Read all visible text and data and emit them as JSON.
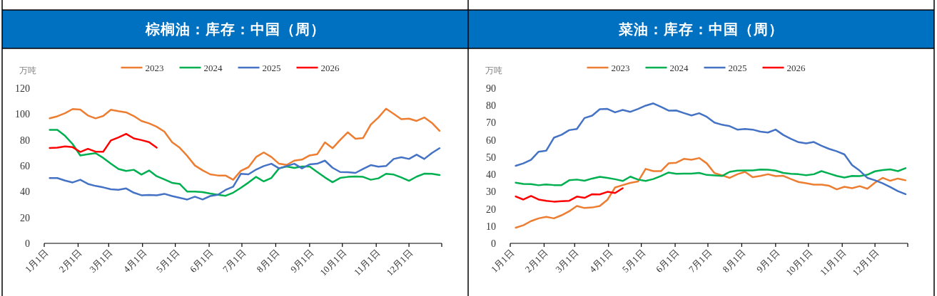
{
  "chart_data": [
    {
      "type": "line",
      "title": "棕榈油：库存：中国（周）",
      "ylabel": "万吨",
      "legend": "top",
      "x": [
        "--01-06",
        "--01-13",
        "--01-20",
        "--01-27",
        "--02-03",
        "--02-10",
        "--02-17",
        "--02-24",
        "--03-03",
        "--03-10",
        "--03-17",
        "--03-24",
        "--03-31",
        "--04-07",
        "--04-14",
        "--04-21",
        "--04-28",
        "--05-05",
        "--05-12",
        "--05-19",
        "--05-26",
        "--06-02",
        "--06-09",
        "--06-16",
        "--06-23",
        "--06-30",
        "--07-07",
        "--07-14",
        "--07-21",
        "--07-28",
        "--08-04",
        "--08-11",
        "--08-18",
        "--08-25",
        "--09-01",
        "--09-08",
        "--09-15",
        "--09-22",
        "--09-29",
        "--10-06",
        "--10-13",
        "--10-20",
        "--10-27",
        "--11-03",
        "--11-10",
        "--11-17",
        "--11-24",
        "--12-01",
        "--12-08",
        "--12-15",
        "--12-22",
        "--12-29"
      ],
      "xlim": [
        "--01-01",
        "--12-31"
      ],
      "xticks": [
        {
          "value": "--01-01",
          "label": "1月1日"
        },
        {
          "value": "--02-01",
          "label": "2月1日"
        },
        {
          "value": "--03-01",
          "label": "3月1日"
        },
        {
          "value": "--04-01",
          "label": "4月1日"
        },
        {
          "value": "--05-01",
          "label": "5月1日"
        },
        {
          "value": "--06-01",
          "label": "6月1日"
        },
        {
          "value": "--07-01",
          "label": "7月1日"
        },
        {
          "value": "--08-01",
          "label": "8月1日"
        },
        {
          "value": "--09-01",
          "label": "9月1日"
        },
        {
          "value": "--10-01",
          "label": "10月1日"
        },
        {
          "value": "--11-01",
          "label": "11月1日"
        },
        {
          "value": "--12-01",
          "label": "12月1日"
        },
        {
          "value": "--12-31",
          "label": null
        }
      ],
      "ylim": [
        0,
        120
      ],
      "yticks": [
        0,
        20,
        40,
        60,
        80,
        100,
        120
      ],
      "series": [
        {
          "name": "2023",
          "color": "#ed7d31",
          "values": [
            96.7,
            98.3,
            100.7,
            103.9,
            103.5,
            98.9,
            96.7,
            98.5,
            103.3,
            102.2,
            101.3,
            98.5,
            94.7,
            92.8,
            90.2,
            86.4,
            78.3,
            74,
            67.6,
            60.2,
            56.5,
            53.4,
            52.5,
            52.5,
            49.2,
            56.1,
            58.9,
            66.8,
            70.3,
            66.8,
            61.6,
            60.7,
            64,
            64.8,
            68,
            69,
            78.1,
            73.6,
            80,
            85.9,
            80.9,
            81.5,
            91.9,
            97.4,
            104.2,
            100.2,
            96.1,
            96.5,
            94.7,
            97.4,
            93.2,
            87
          ]
        },
        {
          "name": "2024",
          "color": "#00b050",
          "values": [
            87.8,
            87.8,
            83.2,
            76.8,
            68,
            68.9,
            69.8,
            66.1,
            61.7,
            57.5,
            56,
            56.9,
            53.2,
            56.4,
            51.9,
            49.5,
            46.8,
            46,
            40,
            40,
            39.6,
            38.5,
            37.6,
            36.8,
            39.2,
            42.9,
            47,
            51.4,
            47.9,
            50.6,
            58,
            59.4,
            58.3,
            59.4,
            59.4,
            55.2,
            51,
            47.3,
            50.6,
            51.4,
            51.7,
            51.4,
            49.2,
            50.3,
            53.8,
            53.2,
            51,
            48.4,
            51.6,
            53.9,
            53.8,
            52.8
          ]
        },
        {
          "name": "2025",
          "color": "#4472c4",
          "values": [
            50.5,
            50.5,
            48.6,
            47.1,
            49.2,
            46,
            44.4,
            43.3,
            41.8,
            41.4,
            42.5,
            39.2,
            37.2,
            37.4,
            37.2,
            38.3,
            36.6,
            35.2,
            33.9,
            36.1,
            33.9,
            36.6,
            37.6,
            41.3,
            43.8,
            53.8,
            53.4,
            57.1,
            59.8,
            61.6,
            58,
            59.8,
            61.6,
            58,
            61.1,
            61.6,
            64,
            58.5,
            55.2,
            55,
            54.5,
            57.6,
            60.5,
            59.3,
            59.8,
            65.3,
            66.6,
            65.3,
            68.6,
            65.3,
            69.9,
            73.6
          ]
        },
        {
          "name": "2026",
          "color": "#ff0000",
          "x": [
            "--01-06",
            "--01-13",
            "--01-20",
            "--01-27",
            "--02-03",
            "--02-10",
            "--02-17",
            "--02-24",
            "--03-03",
            "--03-10",
            "--03-17",
            "--03-24",
            "--03-31",
            "--04-07",
            "--04-14"
          ],
          "values": [
            73.8,
            74,
            75,
            74.4,
            70.7,
            73.1,
            70.9,
            70.9,
            79.6,
            82,
            84.7,
            81.2,
            79.9,
            78.3,
            74
          ]
        }
      ]
    },
    {
      "type": "line",
      "title": "菜油：库存：中国（周）",
      "ylabel": "万吨",
      "legend": "top",
      "x": [
        "--01-06",
        "--01-13",
        "--01-20",
        "--01-27",
        "--02-03",
        "--02-10",
        "--02-17",
        "--02-24",
        "--03-03",
        "--03-10",
        "--03-17",
        "--03-24",
        "--03-31",
        "--04-07",
        "--04-14",
        "--04-21",
        "--04-28",
        "--05-05",
        "--05-12",
        "--05-19",
        "--05-26",
        "--06-02",
        "--06-09",
        "--06-16",
        "--06-23",
        "--06-30",
        "--07-07",
        "--07-14",
        "--07-21",
        "--07-28",
        "--08-04",
        "--08-11",
        "--08-18",
        "--08-25",
        "--09-01",
        "--09-08",
        "--09-15",
        "--09-22",
        "--09-29",
        "--10-06",
        "--10-13",
        "--10-20",
        "--10-27",
        "--11-03",
        "--11-10",
        "--11-17",
        "--11-24",
        "--12-01",
        "--12-08",
        "--12-15",
        "--12-22",
        "--12-29"
      ],
      "xlim": [
        "--01-01",
        "--12-31"
      ],
      "xticks": [
        {
          "value": "--01-01",
          "label": "1月1日"
        },
        {
          "value": "--02-01",
          "label": "2月1日"
        },
        {
          "value": "--03-01",
          "label": "3月1日"
        },
        {
          "value": "--04-01",
          "label": "4月1日"
        },
        {
          "value": "--05-01",
          "label": "5月1日"
        },
        {
          "value": "--06-01",
          "label": "6月1日"
        },
        {
          "value": "--07-01",
          "label": "7月1日"
        },
        {
          "value": "--08-01",
          "label": "8月1日"
        },
        {
          "value": "--09-01",
          "label": "9月1日"
        },
        {
          "value": "--10-01",
          "label": "10月1日"
        },
        {
          "value": "--11-01",
          "label": "11月1日"
        },
        {
          "value": "--12-01",
          "label": "12月1日"
        },
        {
          "value": "--12-31",
          "label": null
        }
      ],
      "ylim": [
        0,
        90
      ],
      "yticks": [
        0,
        10,
        20,
        30,
        40,
        50,
        60,
        70,
        80,
        90
      ],
      "series": [
        {
          "name": "2023",
          "color": "#ed7d31",
          "values": [
            9.1,
            10.5,
            12.9,
            14.5,
            15.4,
            14.5,
            16.3,
            18.6,
            21.7,
            20.5,
            20.8,
            21.7,
            25.3,
            32.4,
            33.8,
            35.1,
            35.9,
            43.2,
            41.9,
            41.9,
            46.4,
            46.8,
            49,
            48.5,
            49.5,
            46.4,
            40.8,
            39.4,
            38,
            40.1,
            41.5,
            38.4,
            39.1,
            40.1,
            39,
            39.2,
            37.3,
            35.6,
            34.9,
            34.1,
            34.1,
            33.4,
            31.3,
            32.8,
            32,
            33.2,
            31.7,
            35.2,
            38,
            36.3,
            37.6,
            36.6
          ]
        },
        {
          "name": "2024",
          "color": "#00b050",
          "values": [
            35.2,
            34.5,
            34.4,
            33.7,
            34.2,
            33.8,
            33.8,
            36.6,
            37,
            36.3,
            37.6,
            38.6,
            38,
            37.2,
            36.2,
            38.7,
            37,
            36.2,
            37.3,
            39.1,
            41.1,
            40.4,
            40.5,
            40.5,
            40.9,
            39.7,
            39.4,
            39.1,
            41.5,
            42.2,
            42.3,
            42.3,
            42.8,
            42.7,
            42.2,
            40.9,
            40.4,
            40.1,
            39.5,
            40.1,
            41.9,
            40.5,
            39.1,
            38.2,
            39.1,
            39,
            39.8,
            41.8,
            42.5,
            42.9,
            41.9,
            43.6
          ]
        },
        {
          "name": "2025",
          "color": "#4472c4",
          "values": [
            45,
            46.4,
            48.5,
            53.2,
            53.8,
            61.3,
            63,
            65.7,
            66.4,
            72.7,
            74.1,
            77.8,
            78,
            76,
            77.4,
            76.3,
            78,
            79.9,
            81.2,
            79.2,
            77,
            77.1,
            75.6,
            74.2,
            75.5,
            73.4,
            70.1,
            68.8,
            68,
            66,
            66.4,
            66,
            64.8,
            64.3,
            66,
            62.9,
            60.6,
            58.7,
            58,
            58.8,
            56.6,
            54.8,
            53.4,
            51.6,
            45.4,
            42.2,
            38,
            36.6,
            34.8,
            32.7,
            30.3,
            28.5
          ]
        },
        {
          "name": "2026",
          "color": "#ff0000",
          "x": [
            "--01-06",
            "--01-13",
            "--01-20",
            "--01-27",
            "--02-03",
            "--02-10",
            "--02-17",
            "--02-24",
            "--03-03",
            "--03-10",
            "--03-17",
            "--03-24",
            "--03-31",
            "--04-07",
            "--04-14"
          ],
          "values": [
            27.2,
            25.4,
            27.5,
            25.4,
            24.7,
            24.2,
            24.5,
            24.7,
            27.1,
            26.4,
            28.5,
            28.4,
            29.9,
            29.2,
            32
          ]
        }
      ]
    }
  ]
}
